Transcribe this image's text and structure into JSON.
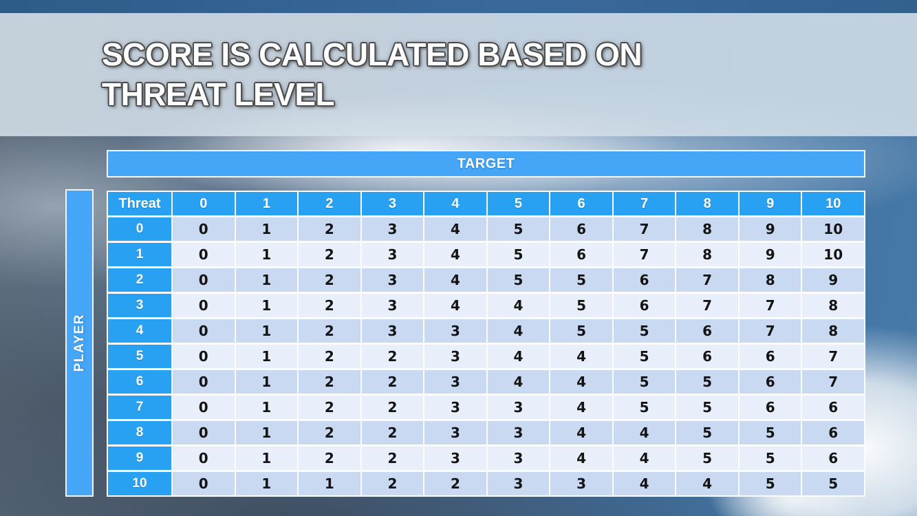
{
  "slide": {
    "title": {
      "line1": "SCORE IS CALCULATED BASED ON",
      "line2": "THREAT LEVEL"
    }
  },
  "table": {
    "target_label": "TARGET",
    "player_label": "PLAYER",
    "corner_label": "Threat",
    "column_headers": [
      "0",
      "1",
      "2",
      "3",
      "4",
      "5",
      "6",
      "7",
      "8",
      "9",
      "10"
    ],
    "rows": [
      {
        "header": "0",
        "values": [
          "0",
          "1",
          "2",
          "3",
          "4",
          "5",
          "6",
          "7",
          "8",
          "9",
          "10"
        ]
      },
      {
        "header": "1",
        "values": [
          "0",
          "1",
          "2",
          "3",
          "4",
          "5",
          "6",
          "7",
          "8",
          "9",
          "10"
        ]
      },
      {
        "header": "2",
        "values": [
          "0",
          "1",
          "2",
          "3",
          "4",
          "5",
          "5",
          "6",
          "7",
          "8",
          "9"
        ]
      },
      {
        "header": "3",
        "values": [
          "0",
          "1",
          "2",
          "3",
          "4",
          "4",
          "5",
          "6",
          "7",
          "7",
          "8"
        ]
      },
      {
        "header": "4",
        "values": [
          "0",
          "1",
          "2",
          "3",
          "3",
          "4",
          "5",
          "5",
          "6",
          "7",
          "8"
        ]
      },
      {
        "header": "5",
        "values": [
          "0",
          "1",
          "2",
          "2",
          "3",
          "4",
          "4",
          "5",
          "6",
          "6",
          "7"
        ]
      },
      {
        "header": "6",
        "values": [
          "0",
          "1",
          "2",
          "2",
          "3",
          "4",
          "4",
          "5",
          "5",
          "6",
          "7"
        ]
      },
      {
        "header": "7",
        "values": [
          "0",
          "1",
          "2",
          "2",
          "3",
          "3",
          "4",
          "5",
          "5",
          "6",
          "6"
        ]
      },
      {
        "header": "8",
        "values": [
          "0",
          "1",
          "2",
          "2",
          "3",
          "3",
          "4",
          "4",
          "5",
          "5",
          "6"
        ]
      },
      {
        "header": "9",
        "values": [
          "0",
          "1",
          "2",
          "2",
          "3",
          "3",
          "4",
          "4",
          "5",
          "5",
          "6"
        ]
      },
      {
        "header": "10",
        "values": [
          "0",
          "1",
          "1",
          "2",
          "2",
          "3",
          "3",
          "4",
          "4",
          "5",
          "5"
        ]
      }
    ]
  },
  "colors": {
    "header_cell_blue": "#29a1f3",
    "banner_blue": "#45a5f7",
    "row_even": "#c9d9f2",
    "row_odd": "#e9eefb",
    "cell_text": "#141414",
    "title_fill": "#ffffff",
    "title_outline": "#4a4a4a",
    "title_band": "rgba(211,223,232,0.87)"
  }
}
